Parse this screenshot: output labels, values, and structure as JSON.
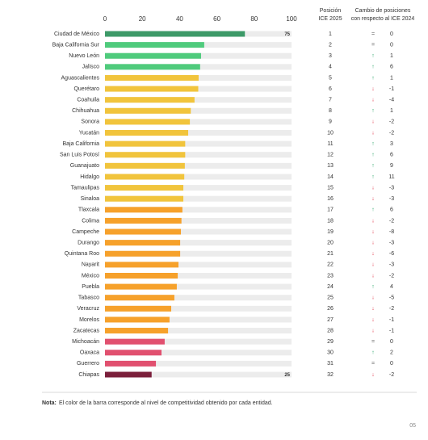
{
  "chart_data": {
    "type": "bar",
    "orientation": "horizontal",
    "categories": [
      "Ciudad de México",
      "Baja California Sur",
      "Nuevo León",
      "Jalisco",
      "Aguascalientes",
      "Querétaro",
      "Coahuila",
      "Chihuahua",
      "Sonora",
      "Yucatán",
      "Baja California",
      "San Luis Potosí",
      "Guanajuato",
      "Hidalgo",
      "Tamaulipas",
      "Sinaloa",
      "Tlaxcala",
      "Colima",
      "Campeche",
      "Durango",
      "Quintana Roo",
      "Nayarit",
      "México",
      "Puebla",
      "Tabasco",
      "Veracruz",
      "Morelos",
      "Zacatecas",
      "Michoacán",
      "Oaxaca",
      "Guerrero",
      "Chiapas"
    ],
    "values": [
      75,
      53.2,
      51.5,
      51,
      50.2,
      50,
      48,
      46,
      45.5,
      44.6,
      43,
      43,
      42.8,
      42.5,
      42,
      42,
      41.5,
      41,
      40.7,
      40.3,
      40.3,
      39.4,
      39,
      38.5,
      37.2,
      35.5,
      34.6,
      33.8,
      32,
      30.3,
      27.3,
      25
    ],
    "value_labels": [
      "75",
      null,
      null,
      null,
      null,
      null,
      null,
      null,
      null,
      null,
      null,
      null,
      null,
      null,
      null,
      null,
      null,
      null,
      null,
      null,
      null,
      null,
      null,
      null,
      null,
      null,
      null,
      null,
      null,
      null,
      null,
      "25"
    ],
    "colors": [
      "#3d9a68",
      "#4fcb7c",
      "#4fcb7c",
      "#4fcb7c",
      "#f1c43c",
      "#f1c43c",
      "#f1c43c",
      "#f1c43c",
      "#f1c43c",
      "#f1c43c",
      "#f1c43c",
      "#f1c43c",
      "#f1c43c",
      "#f1c43c",
      "#f1c43c",
      "#f1c43c",
      "#f6a12b",
      "#f6a12b",
      "#f6a12b",
      "#f6a12b",
      "#f6a12b",
      "#f6a12b",
      "#f6a12b",
      "#f6a12b",
      "#f6a12b",
      "#f6a12b",
      "#f6a12b",
      "#f6a12b",
      "#e1506f",
      "#e1506f",
      "#e1506f",
      "#7b1f3b"
    ],
    "track_color": "#ececec",
    "xlim": [
      0,
      100
    ],
    "xticks": [
      0,
      20,
      40,
      60,
      80,
      100
    ]
  },
  "table": {
    "position_header": [
      "Posición",
      "ICE 2025"
    ],
    "change_header": [
      "Cambio de posiciones",
      "con respecto al ICE 2024"
    ],
    "positions": [
      1,
      2,
      3,
      4,
      5,
      6,
      7,
      8,
      9,
      10,
      11,
      12,
      13,
      14,
      15,
      16,
      17,
      18,
      19,
      20,
      21,
      22,
      23,
      24,
      25,
      26,
      27,
      28,
      29,
      30,
      31,
      32
    ],
    "change_symbols": [
      "=",
      "=",
      "↑",
      "↑",
      "↑",
      "↓",
      "↓",
      "↑",
      "↓",
      "↓",
      "↑",
      "↑",
      "↑",
      "↑",
      "↓",
      "↓",
      "↑",
      "↓",
      "↓",
      "↓",
      "↓",
      "↓",
      "↓",
      "↑",
      "↓",
      "↓",
      "↓",
      "↓",
      "=",
      "↑",
      "=",
      "↓"
    ],
    "changes": [
      0,
      0,
      1,
      6,
      1,
      -1,
      -4,
      1,
      -2,
      -2,
      3,
      6,
      9,
      11,
      -3,
      -3,
      6,
      -2,
      -8,
      -3,
      -6,
      -3,
      -2,
      4,
      -5,
      -2,
      -1,
      -1,
      0,
      2,
      0,
      -2
    ],
    "symbol_colors": {
      "↑": "#27a567",
      "↓": "#e2384a",
      "=": "#666666"
    }
  },
  "note": {
    "label": "Nota:",
    "text": "El color de la barra corresponde al nivel de competitividad obtenido por cada entidad."
  },
  "page_number": "05"
}
